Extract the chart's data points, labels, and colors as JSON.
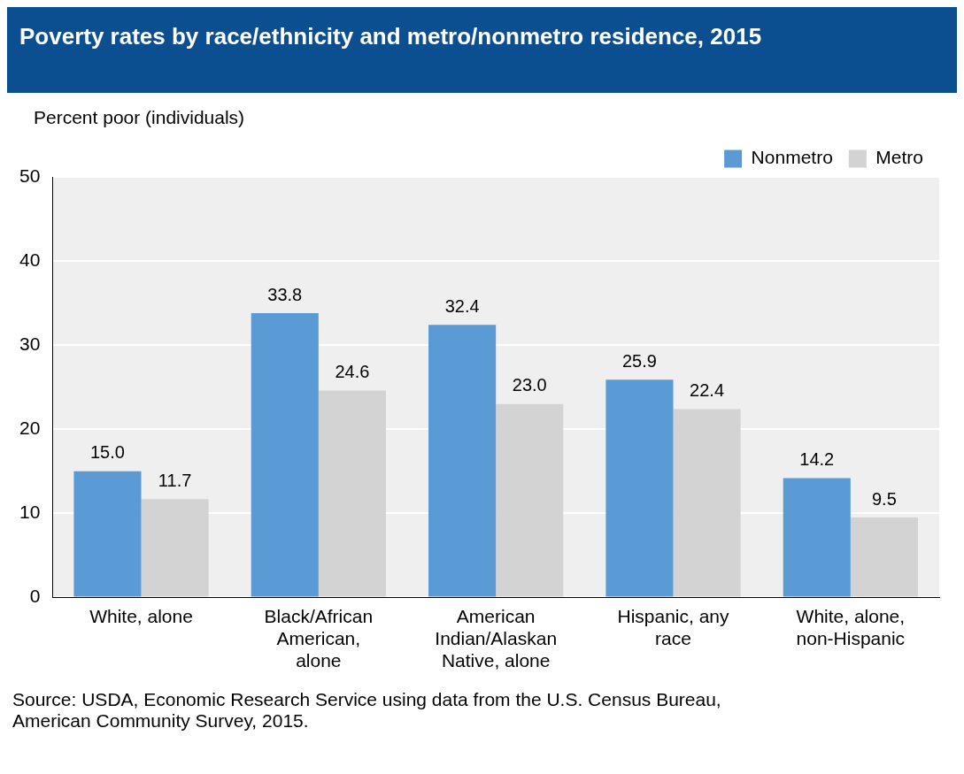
{
  "chart_data": {
    "type": "bar",
    "title": "Poverty rates by race/ethnicity and metro/nonmetro residence, 2015",
    "ylabel": "Percent poor (individuals)",
    "categories": [
      "White, alone",
      "Black/African American, alone",
      "American Indian/Alaskan Native, alone",
      "Hispanic, any race",
      "White, alone, non-Hispanic"
    ],
    "series": [
      {
        "name": "Nonmetro",
        "color": "#5b9bd5",
        "values": [
          15.0,
          33.8,
          32.4,
          25.9,
          14.2
        ],
        "value_labels": [
          "15.0",
          "33.8",
          "32.4",
          "25.9",
          "14.2"
        ]
      },
      {
        "name": "Metro",
        "color": "#d3d3d3",
        "values": [
          11.7,
          24.6,
          23.0,
          22.4,
          9.5
        ],
        "value_labels": [
          "11.7",
          "24.6",
          "23.0",
          "22.4",
          "9.5"
        ]
      }
    ],
    "ylim": [
      0,
      50
    ],
    "yticks": [
      0,
      10,
      20,
      30,
      40,
      50
    ],
    "grid": "y",
    "legend": "top right",
    "annotations": [
      "Source: USDA, Economic Research Service using data from the U.S. Census Bureau, American Community Survey, 2015."
    ]
  }
}
